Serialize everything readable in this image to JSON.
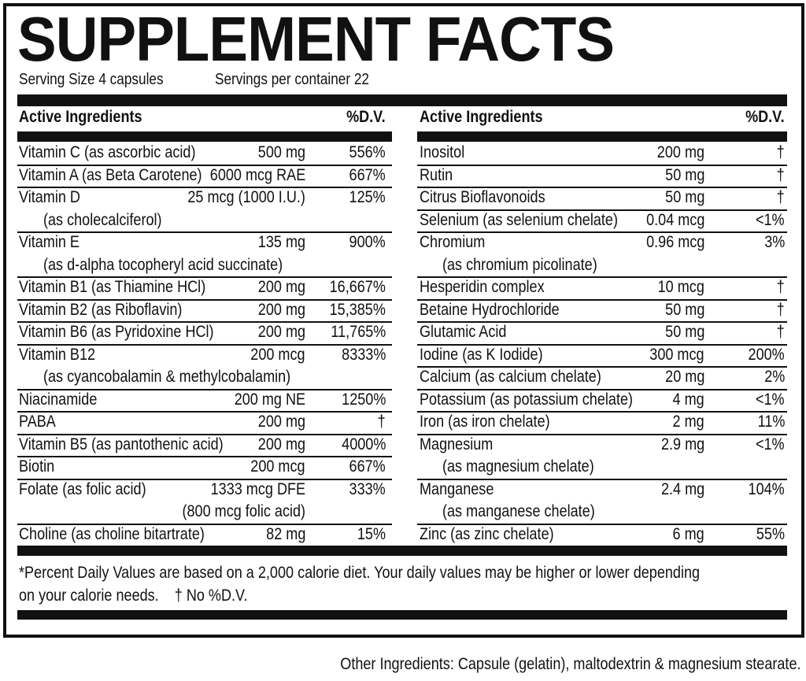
{
  "header": {
    "title": "SUPPLEMENT FACTS",
    "serving_size": "Serving Size 4 capsules",
    "servings_per_container": "Servings per container 22"
  },
  "left_column": {
    "headers": [
      "Active Ingredients",
      "%D.V."
    ],
    "rows": [
      {
        "name": "Vitamin C (as ascorbic acid)",
        "amount": "500 mg",
        "dv": "556%"
      },
      {
        "name": "Vitamin A (as Beta Carotene)",
        "amount": "6000 mcg RAE",
        "dv": "667%"
      },
      {
        "name": "Vitamin D",
        "amount": "25 mcg (1000 I.U.)",
        "dv": "125%",
        "detail": "(as cholecalciferol)"
      },
      {
        "name": "Vitamin E",
        "amount": "135 mg",
        "dv": "900%",
        "detail": "(as d-alpha tocopheryl acid succinate)"
      },
      {
        "name": "Vitamin B1 (as Thiamine HCl)",
        "amount": "200 mg",
        "dv": "16,667%"
      },
      {
        "name": "Vitamin B2 (as Riboflavin)",
        "amount": "200 mg",
        "dv": "15,385%"
      },
      {
        "name": "Vitamin B6 (as Pyridoxine HCl)",
        "amount": "200 mg",
        "dv": "11,765%"
      },
      {
        "name": "Vitamin B12",
        "amount": "200 mcg",
        "dv": "8333%",
        "detail": "(as cyancobalamin & methylcobalamin)"
      },
      {
        "name": "Niacinamide",
        "amount": "200 mg NE",
        "dv": "1250%"
      },
      {
        "name": "PABA",
        "amount": "200 mg",
        "dv": "†"
      },
      {
        "name": "Vitamin B5 (as pantothenic acid)",
        "amount": "200 mg",
        "dv": "4000%"
      },
      {
        "name": "Biotin",
        "amount": "200 mcg",
        "dv": "667%"
      },
      {
        "name": "Folate (as folic acid)",
        "amount": "1333 mcg DFE",
        "dv": "333%",
        "amount_detail": "(800 mcg folic acid)"
      },
      {
        "name": "Choline (as choline bitartrate)",
        "amount": "82 mg",
        "dv": "15%"
      }
    ]
  },
  "right_column": {
    "headers": [
      "Active Ingredients",
      "%D.V."
    ],
    "rows": [
      {
        "name": "Inositol",
        "amount": "200 mg",
        "dv": "†"
      },
      {
        "name": "Rutin",
        "amount": "50 mg",
        "dv": "†"
      },
      {
        "name": "Citrus Bioflavonoids",
        "amount": "50 mg",
        "dv": "†"
      },
      {
        "name": "Selenium (as selenium chelate)",
        "amount": "0.04 mcg",
        "dv": "<1%"
      },
      {
        "name": "Chromium",
        "amount": "0.96 mcg",
        "dv": "3%",
        "detail": "(as chromium picolinate)"
      },
      {
        "name": "Hesperidin complex",
        "amount": "10 mcg",
        "dv": "†"
      },
      {
        "name": "Betaine Hydrochloride",
        "amount": "50 mg",
        "dv": "†"
      },
      {
        "name": "Glutamic Acid",
        "amount": "50 mg",
        "dv": "†"
      },
      {
        "name": "Iodine (as K Iodide)",
        "amount": "300 mcg",
        "dv": "200%"
      },
      {
        "name": "Calcium (as calcium chelate)",
        "amount": "20 mg",
        "dv": "2%"
      },
      {
        "name": "Potassium (as potassium chelate)",
        "amount": "4 mg",
        "dv": "<1%"
      },
      {
        "name": "Iron (as iron chelate)",
        "amount": "2 mg",
        "dv": "11%"
      },
      {
        "name": "Magnesium",
        "amount": "2.9 mg",
        "dv": "<1%",
        "detail": "(as magnesium chelate)"
      },
      {
        "name": "Manganese",
        "amount": "2.4 mg",
        "dv": "104%",
        "detail": "(as manganese chelate)"
      },
      {
        "name": "Zinc (as zinc chelate)",
        "amount": "6 mg",
        "dv": "55%"
      }
    ]
  },
  "footnote": [
    "*Percent Daily Values are based on a 2,000 calorie diet. Your daily values may be higher or lower depending",
    "on your calorie needs.    † No %D.V."
  ],
  "other_ingredients": "Other Ingredients: Capsule (gelatin), maltodextrin & magnesium stearate."
}
